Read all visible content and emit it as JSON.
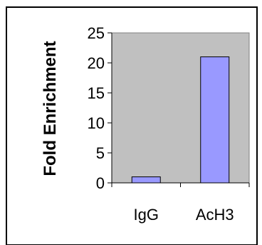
{
  "chart_data": {
    "type": "bar",
    "title": "",
    "xlabel": "",
    "ylabel": "Fold Enrichment",
    "categories": [
      "IgG",
      "AcH3"
    ],
    "values": [
      1,
      21
    ],
    "ylim": [
      0,
      25
    ],
    "yticks": [
      "0",
      "5",
      "10",
      "15",
      "20",
      "25"
    ],
    "grid": false,
    "colors": {
      "plot_background": "#c0c0c0",
      "bar_fill": "#9999ff",
      "bar_stroke": "#000000",
      "frame_border": "#000000"
    }
  }
}
